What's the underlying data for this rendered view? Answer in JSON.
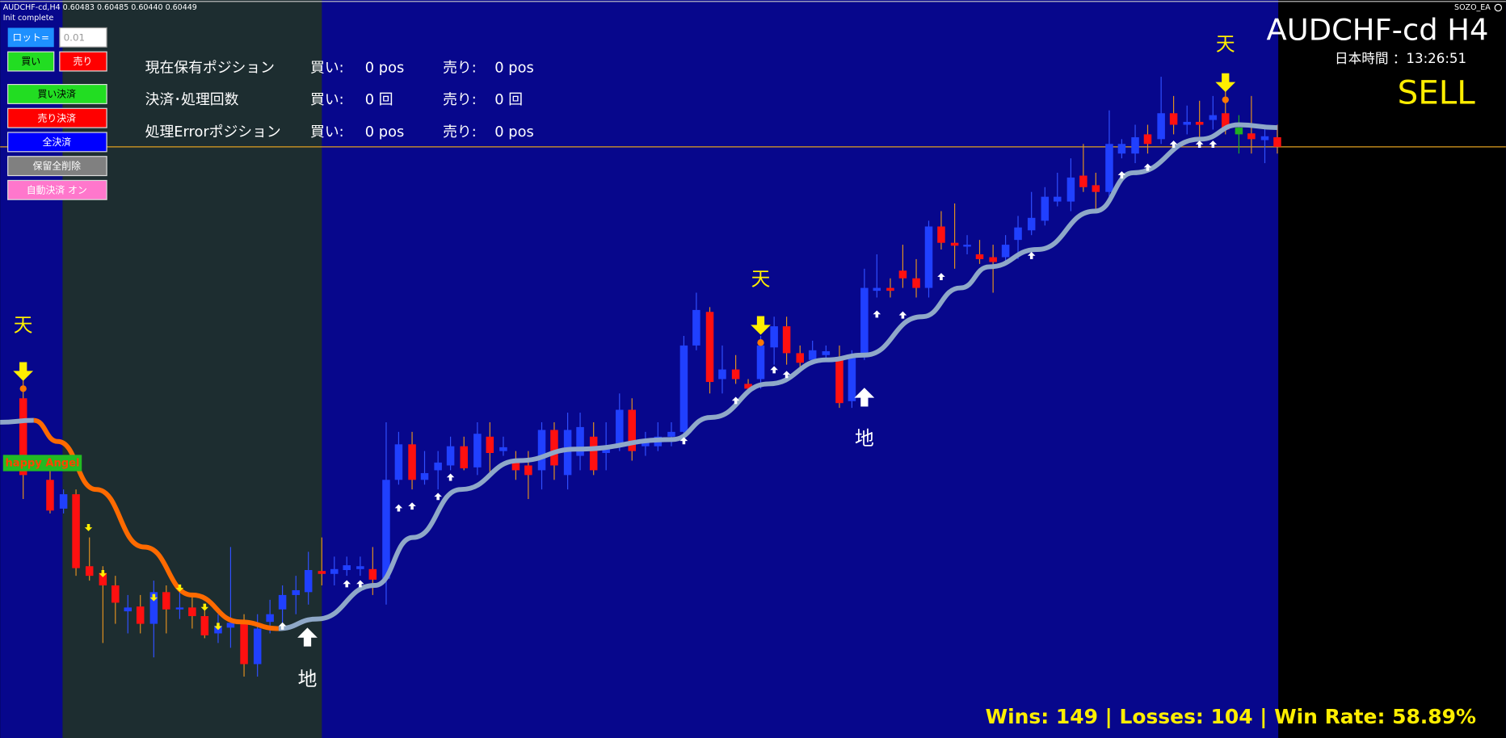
{
  "header": {
    "symbol_info": "AUDCHF-cd,H4  0.60483 0.60485 0.60440 0.60449",
    "status": "Init complete",
    "ea_name": "SOZO_EA"
  },
  "controls": {
    "lot_label": "ロット=",
    "lot_value": "0.01",
    "buy": "買い",
    "sell": "売り",
    "close_buy": "買い決済",
    "close_sell": "売り決済",
    "close_all": "全決済",
    "delete_pending": "保留全削除",
    "auto_close": "自動決済 オン"
  },
  "positions": {
    "rows": [
      {
        "label": "現在保有ポジション",
        "buy": "買い:",
        "buy_value": "0 pos",
        "sell": "売り:",
        "sell_value": "0 pos"
      },
      {
        "label": "決済･処理回数",
        "buy": "買い:",
        "buy_value": "0 回",
        "sell": "売り:",
        "sell_value": "0 回"
      },
      {
        "label": "処理Errorポジション",
        "buy": "買い:",
        "buy_value": "0 pos",
        "sell": "売り:",
        "sell_value": "0 pos"
      }
    ]
  },
  "chart": {
    "title": "AUDCHF-cd H4",
    "time": "日本時間 ：13:26:51",
    "signal": "SELL",
    "markers": [
      "天",
      "天",
      "天",
      "地",
      "地"
    ],
    "badge": "happy Angel",
    "stats": "Wins: 149 | Losses: 104 | Win Rate: 58.89%"
  }
}
